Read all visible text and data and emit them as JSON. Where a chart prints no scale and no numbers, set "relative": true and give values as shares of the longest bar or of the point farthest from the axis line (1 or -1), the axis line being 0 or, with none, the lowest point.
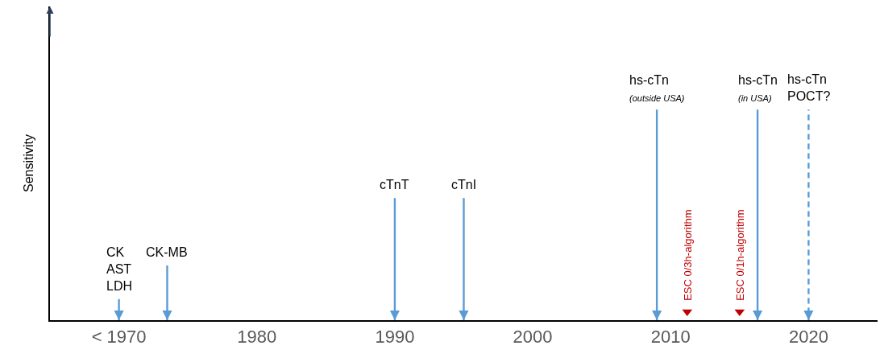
{
  "chart_data": {
    "type": "bar",
    "relative": true,
    "ylabel": "Sensitivity",
    "xlim": [
      1965,
      2025
    ],
    "xticks": [
      {
        "value": 1970,
        "label": "< 1970"
      },
      1980,
      1990,
      2000,
      2010,
      2020
    ],
    "series": [
      {
        "color": "#5b9bd5",
        "x": [
          1970,
          1973.5,
          1990,
          1995,
          2009,
          2016.3
        ],
        "values": [
          0.1,
          0.26,
          0.58,
          0.58,
          1,
          1
        ]
      },
      {
        "color": "#5b9bd5",
        "line_style": "dashed",
        "x": [
          2020
        ],
        "values": [
          1
        ]
      },
      {
        "type": "scatter",
        "marker": "triangle",
        "name": "ESC 0/3h-algorithm",
        "color": "#c00000",
        "x": [
          2011.2
        ],
        "values": [
          0.04
        ]
      },
      {
        "type": "scatter",
        "marker": "triangle",
        "name": "ESC 0/1h-algorithm",
        "color": "#c00000",
        "x": [
          2015
        ],
        "values": [
          0.04
        ]
      }
    ],
    "annotations": [
      {
        "text": "CK\nAST\nLDH",
        "x": 1970,
        "y": 0.1
      },
      {
        "text": "CK-MB",
        "x": 1973.5,
        "y": 0.26
      },
      {
        "text": "cTnT",
        "x": 1990,
        "y": 0.58
      },
      {
        "text": "cTnI",
        "x": 1995,
        "y": 0.58
      },
      {
        "text": "hs-cTn\n(outside USA)",
        "x": 2009,
        "y": 1
      },
      {
        "text": "hs-cTn\n(in USA)",
        "x": 2016.3,
        "y": 1
      },
      {
        "text": "hs-cTn\nPOCT?",
        "x": 2020,
        "y": 1
      }
    ]
  }
}
